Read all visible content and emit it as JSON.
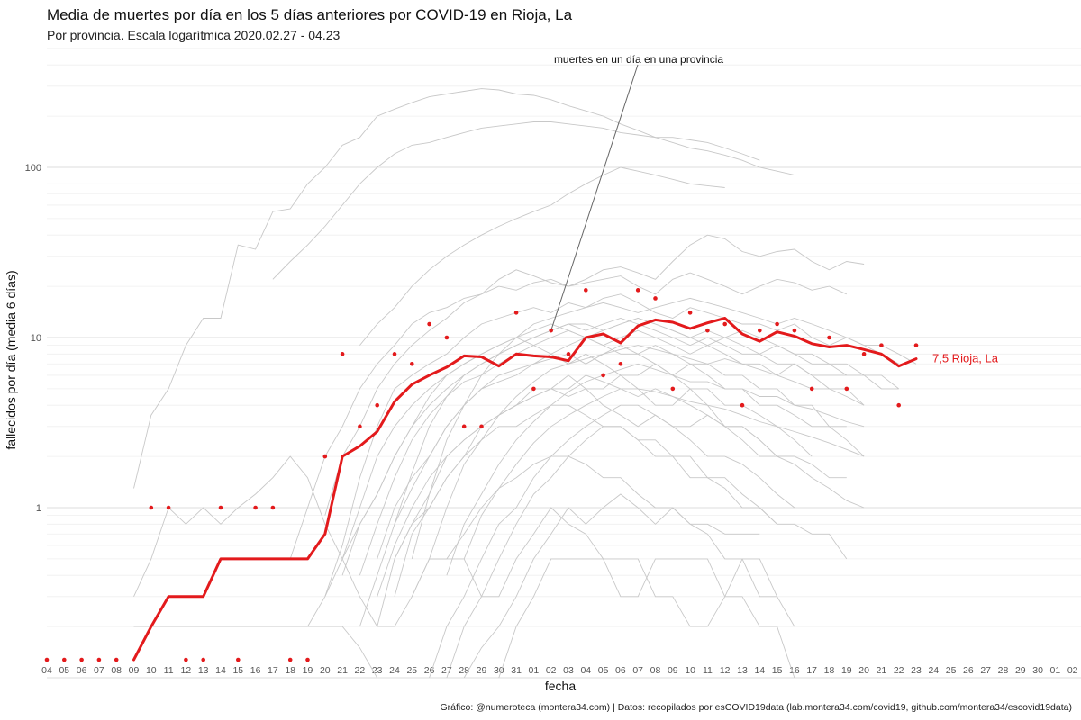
{
  "chart_data": {
    "type": "line",
    "title": "Media de muertes por día en los 5 días anteriores por COVID-19 en Rioja, La",
    "subtitle": "Por provincia. Escala logarítmica  2020.02.27 - 04.23",
    "xlabel": "fecha",
    "ylabel": "fallecidos por día (media 6 días)",
    "y_scale": "log",
    "ylim": [
      0.1,
      500
    ],
    "y_ticks": [
      1,
      10,
      100
    ],
    "y_tick_labels": [
      "1",
      "10",
      "100"
    ],
    "x_tick_labels": [
      "04",
      "05",
      "06",
      "07",
      "08",
      "09",
      "10",
      "11",
      "12",
      "13",
      "14",
      "15",
      "16",
      "17",
      "18",
      "19",
      "20",
      "21",
      "22",
      "23",
      "24",
      "25",
      "26",
      "27",
      "28",
      "29",
      "30",
      "31",
      "01",
      "02",
      "03",
      "04",
      "05",
      "06",
      "07",
      "08",
      "09",
      "10",
      "11",
      "12",
      "13",
      "14",
      "15",
      "16",
      "17",
      "18",
      "19",
      "20",
      "21",
      "22",
      "23",
      "24",
      "25",
      "26",
      "27",
      "28",
      "29",
      "30",
      "01",
      "02"
    ],
    "grid": true,
    "legend": "none",
    "annotation": "muertes en un día en una provincia",
    "highlight": {
      "name": "Rioja, La",
      "label": "7,5 Rioja, La",
      "color": "#e31a1c",
      "x_start": 5,
      "values": [
        0.1,
        0.2,
        0.3,
        0.3,
        0.3,
        0.5,
        0.5,
        0.5,
        0.5,
        0.5,
        0.5,
        0.7,
        2.0,
        2.3,
        2.8,
        4.2,
        5.3,
        6.0,
        6.7,
        7.8,
        7.7,
        6.8,
        8.0,
        7.8,
        7.7,
        7.3,
        10.0,
        10.5,
        9.3,
        11.7,
        12.7,
        12.3,
        11.3,
        12.2,
        13.0,
        10.5,
        9.5,
        10.8,
        10.2,
        9.2,
        8.8,
        9.0,
        8.5,
        8.0,
        6.8,
        7.5
      ]
    },
    "daily_points": {
      "color": "#e31a1c",
      "x": [
        0,
        1,
        2,
        3,
        4,
        6,
        7,
        8,
        9,
        10,
        11,
        12,
        13,
        14,
        15,
        16,
        17,
        18,
        19,
        20,
        21,
        22,
        23,
        24,
        25,
        27,
        28,
        29,
        30,
        31,
        32,
        33,
        34,
        35,
        36,
        37,
        38,
        39,
        40,
        41,
        42,
        43,
        44,
        45,
        46,
        47,
        48,
        49,
        50
      ],
      "values": [
        0.1,
        0.1,
        0.1,
        0.1,
        0.1,
        1,
        1,
        0.1,
        0.1,
        1,
        0.1,
        1,
        1,
        0.1,
        0.1,
        2,
        8,
        3,
        4,
        8,
        7,
        12,
        10,
        3,
        3,
        14,
        5,
        11,
        8,
        19,
        6,
        7,
        19,
        17,
        5,
        14,
        11,
        12,
        4,
        11,
        12,
        11,
        5,
        10,
        5,
        8,
        9,
        4,
        9
      ]
    },
    "other_series": [
      {
        "x_start": 5,
        "values": [
          1.3,
          3.5,
          5,
          9,
          13,
          13,
          35,
          33,
          55,
          57,
          80,
          100,
          135,
          150,
          200,
          220,
          240,
          260,
          270,
          280,
          290,
          285,
          270,
          265,
          250,
          230,
          215,
          200,
          180,
          165,
          150,
          150,
          145,
          140,
          130,
          120,
          110
        ]
      },
      {
        "x_start": 13,
        "values": [
          22,
          28,
          35,
          45,
          60,
          80,
          100,
          120,
          135,
          140,
          150,
          160,
          170,
          175,
          180,
          185,
          185,
          180,
          175,
          170,
          160,
          155,
          150,
          140,
          130,
          125,
          118,
          110,
          100,
          95,
          90
        ]
      },
      {
        "x_start": 18,
        "values": [
          9,
          12,
          15,
          20,
          25,
          30,
          35,
          40,
          45,
          50,
          55,
          60,
          70,
          80,
          90,
          100,
          95,
          90,
          85,
          80,
          78,
          76
        ]
      },
      {
        "x_start": 16,
        "values": [
          0.9,
          2,
          3,
          5,
          7,
          9,
          11,
          13,
          16,
          18,
          22,
          25,
          23,
          21,
          20,
          22,
          25,
          26,
          24,
          22,
          28,
          35,
          40,
          38,
          32,
          30,
          32,
          33,
          28,
          25,
          28,
          27
        ]
      },
      {
        "x_start": 14,
        "values": [
          0.5,
          1,
          2,
          3,
          5,
          7,
          9,
          12,
          14,
          15,
          17,
          18,
          20,
          19,
          21,
          22,
          20,
          21,
          22,
          23,
          20,
          18,
          22,
          24,
          22,
          20,
          18,
          20,
          22,
          21,
          19,
          20,
          18
        ]
      },
      {
        "x_start": 16,
        "values": [
          0.3,
          0.6,
          1.5,
          3,
          5,
          6,
          7,
          8,
          10,
          12,
          13,
          14,
          15,
          14,
          16,
          15,
          17,
          18,
          16,
          14,
          13,
          15,
          14,
          13,
          12,
          12,
          11,
          12,
          10,
          9,
          10,
          9,
          8,
          7
        ]
      },
      {
        "x_start": 17,
        "values": [
          0.5,
          1,
          2,
          3,
          4,
          5,
          6,
          7,
          8,
          9,
          10,
          9,
          10,
          11,
          10,
          9,
          10,
          11,
          10,
          9,
          8,
          9,
          8,
          7,
          7,
          6,
          7,
          6,
          5,
          5,
          4
        ]
      },
      {
        "x_start": 18,
        "values": [
          0.4,
          0.8,
          1.5,
          2.5,
          3.5,
          4.5,
          5.5,
          6,
          7,
          8,
          9,
          8,
          9,
          10,
          9,
          8,
          8,
          9,
          8,
          7,
          7,
          6,
          6,
          5,
          5,
          4,
          4,
          3,
          3
        ]
      },
      {
        "x_start": 19,
        "values": [
          0.5,
          1,
          1.5,
          2,
          3,
          4,
          5,
          5.5,
          6,
          7,
          8,
          7,
          8,
          7,
          6,
          6,
          7,
          6,
          5,
          5,
          4,
          4,
          3.5,
          3,
          2.5,
          2
        ]
      },
      {
        "x_start": 20,
        "values": [
          0.3,
          0.7,
          1,
          1.5,
          2,
          3,
          3.5,
          4,
          5,
          5,
          6,
          5,
          5,
          6,
          5,
          4,
          4,
          5,
          4,
          3,
          3,
          2.5,
          2,
          2
        ]
      },
      {
        "x_start": 19,
        "values": [
          0.2,
          0.5,
          0.8,
          1.2,
          2,
          2.5,
          3,
          3.5,
          4,
          4.5,
          5,
          4.5,
          5,
          4,
          3.5,
          3,
          3.5,
          3,
          2.5,
          2,
          2,
          1.8,
          1.5,
          1.2,
          1
        ]
      },
      {
        "x_start": 20,
        "values": [
          0.5,
          0.8,
          1,
          1.5,
          2,
          2.5,
          3,
          3,
          3.5,
          4,
          4,
          3.5,
          3,
          3,
          2.5,
          2.5,
          2,
          2,
          1.5,
          1.5,
          1.2,
          1,
          0.8
        ]
      },
      {
        "x_start": 21,
        "values": [
          0.3,
          0.5,
          0.5,
          0.7,
          1,
          1.3,
          1.5,
          1.8,
          2,
          2,
          1.8,
          1.5,
          1.5,
          1.2,
          1,
          1,
          0.8,
          0.8,
          0.7,
          0.7,
          0.7
        ]
      },
      {
        "x_start": 19,
        "values": [
          0.2,
          0.2,
          0.3,
          0.5,
          0.5,
          0.5,
          0.3,
          0.3,
          0.5,
          0.7,
          1,
          0.8,
          0.7,
          0.5,
          0.5,
          0.5,
          0.3,
          0.3,
          0.2,
          0.2,
          0.3,
          0.5,
          0.5,
          0.3
        ]
      },
      {
        "x_start": 5,
        "values": [
          0.2,
          0.2,
          0.2,
          0.2,
          0.2,
          0.2,
          0.2,
          0.2,
          0.2,
          0.2,
          0.2,
          0.2,
          0.2,
          0.15,
          0.1
        ]
      },
      {
        "x_start": 5,
        "values": [
          0.3,
          0.5,
          1,
          0.8,
          1,
          0.8,
          1,
          1.2,
          1.5,
          2,
          1.5,
          0.8,
          0.5,
          0.3,
          0.2
        ]
      },
      {
        "x_start": 15,
        "values": [
          0.2,
          0.3,
          0.5,
          0.8,
          1.2,
          2,
          3,
          4,
          5,
          6,
          7,
          8,
          9,
          10,
          11,
          12,
          12,
          11,
          12,
          13,
          12,
          11,
          10,
          9,
          10,
          11,
          10,
          9,
          8,
          8,
          7,
          7,
          6,
          6,
          5
        ]
      },
      {
        "x_start": 17,
        "values": [
          0.4,
          0.8,
          1.2,
          2,
          3,
          4.5,
          6,
          7,
          8,
          9,
          10,
          11,
          12,
          11,
          10,
          11,
          12,
          13,
          12,
          11,
          10,
          11,
          10,
          9,
          8,
          9,
          8,
          7,
          7,
          6,
          6,
          5,
          5
        ]
      },
      {
        "x_start": 18,
        "values": [
          0.2,
          0.4,
          0.8,
          1.3,
          2,
          3,
          4,
          5,
          6,
          6.5,
          7,
          7.5,
          8,
          7,
          8,
          9,
          8,
          7,
          6,
          7,
          6,
          5,
          5,
          4,
          4,
          3.5,
          3,
          3,
          2.5,
          2
        ]
      },
      {
        "x_start": 19,
        "values": [
          0.3,
          0.6,
          1,
          1.5,
          2,
          2.5,
          3,
          3.5,
          4,
          4.5,
          5,
          5,
          6,
          5.5,
          5,
          4.5,
          5,
          4.5,
          4,
          3.5,
          3,
          3,
          2.5,
          2,
          2,
          1.8,
          1.5,
          1.5
        ]
      },
      {
        "x_start": 22,
        "values": [
          0.1,
          0.2,
          0.3,
          0.5,
          0.8,
          1,
          1.5,
          2,
          2.5,
          3,
          3.5,
          4,
          4,
          3.5,
          3,
          3,
          3.5,
          3,
          2.5,
          2,
          2,
          1.8,
          1.5,
          1.3,
          1.1,
          1
        ]
      },
      {
        "x_start": 23,
        "values": [
          0.1,
          0.2,
          0.3,
          0.5,
          0.8,
          1.2,
          1.5,
          2,
          2.5,
          3,
          3,
          2.5,
          2,
          2,
          1.5,
          1.5,
          1.3,
          1,
          1,
          0.8,
          0.8,
          0.7,
          0.7,
          0.5
        ]
      },
      {
        "x_start": 26,
        "values": [
          0.1,
          0.2,
          0.3,
          0.5,
          0.5,
          0.5,
          0.5,
          0.3,
          0.3,
          0.5,
          0.5,
          0.5,
          0.5,
          0.3,
          0.3,
          0.2,
          0.2,
          0.1
        ]
      },
      {
        "x_start": 24,
        "values": [
          0.1,
          0.15,
          0.2,
          0.3,
          0.5,
          0.7,
          1,
          0.8,
          1,
          1.2,
          1,
          0.8,
          1,
          0.8,
          0.7,
          0.5,
          0.5,
          0.3,
          0.3,
          0.2
        ]
      },
      {
        "x_start": 21,
        "values": [
          0.5,
          1.2,
          2.5,
          4,
          6,
          8,
          10,
          12,
          13,
          14,
          15,
          16,
          15,
          14,
          15,
          16,
          17,
          16,
          15,
          14,
          13,
          12,
          13,
          12,
          11,
          10,
          9,
          9,
          8,
          7
        ]
      },
      {
        "x_start": 20,
        "values": [
          0.8,
          1.6,
          3,
          4.5,
          6,
          7,
          8,
          9,
          10,
          11,
          12,
          11,
          12,
          13,
          12,
          11,
          10,
          9,
          10,
          9,
          8,
          8,
          7,
          7,
          6,
          6,
          6
        ]
      },
      {
        "x_start": 22,
        "values": [
          0.5,
          1,
          1.8,
          2.5,
          3.5,
          4.5,
          5.5,
          6.5,
          7,
          7.5,
          8,
          8.5,
          9,
          8.5,
          8,
          7.5,
          7,
          7.5,
          7,
          6.5,
          6,
          5.5,
          5,
          5,
          4.5,
          4
        ]
      },
      {
        "x_start": 23,
        "values": [
          0.4,
          0.8,
          1.2,
          1.8,
          2.5,
          3.2,
          4,
          4.8,
          5.5,
          6,
          6.5,
          7,
          6.5,
          6,
          5.5,
          5.5,
          5,
          5,
          4.5,
          4.5,
          4,
          3.8,
          3.5,
          3.2,
          3
        ]
      },
      {
        "x_start": 24,
        "values": [
          0.5,
          0.9,
          1.3,
          1.8,
          2.4,
          3,
          3.5,
          4,
          4.5,
          5,
          5,
          4.8,
          4.5,
          4.2,
          4,
          3.8,
          3.5,
          3.2,
          3,
          2.8,
          2.6,
          2.4,
          2.2,
          2
        ]
      }
    ],
    "caption": "Gráfico: @numeroteca (montera34.com) | Datos: recopilados por esCOVID19data (lab.montera34.com/covid19, github.com/montera34/escovid19data)"
  }
}
